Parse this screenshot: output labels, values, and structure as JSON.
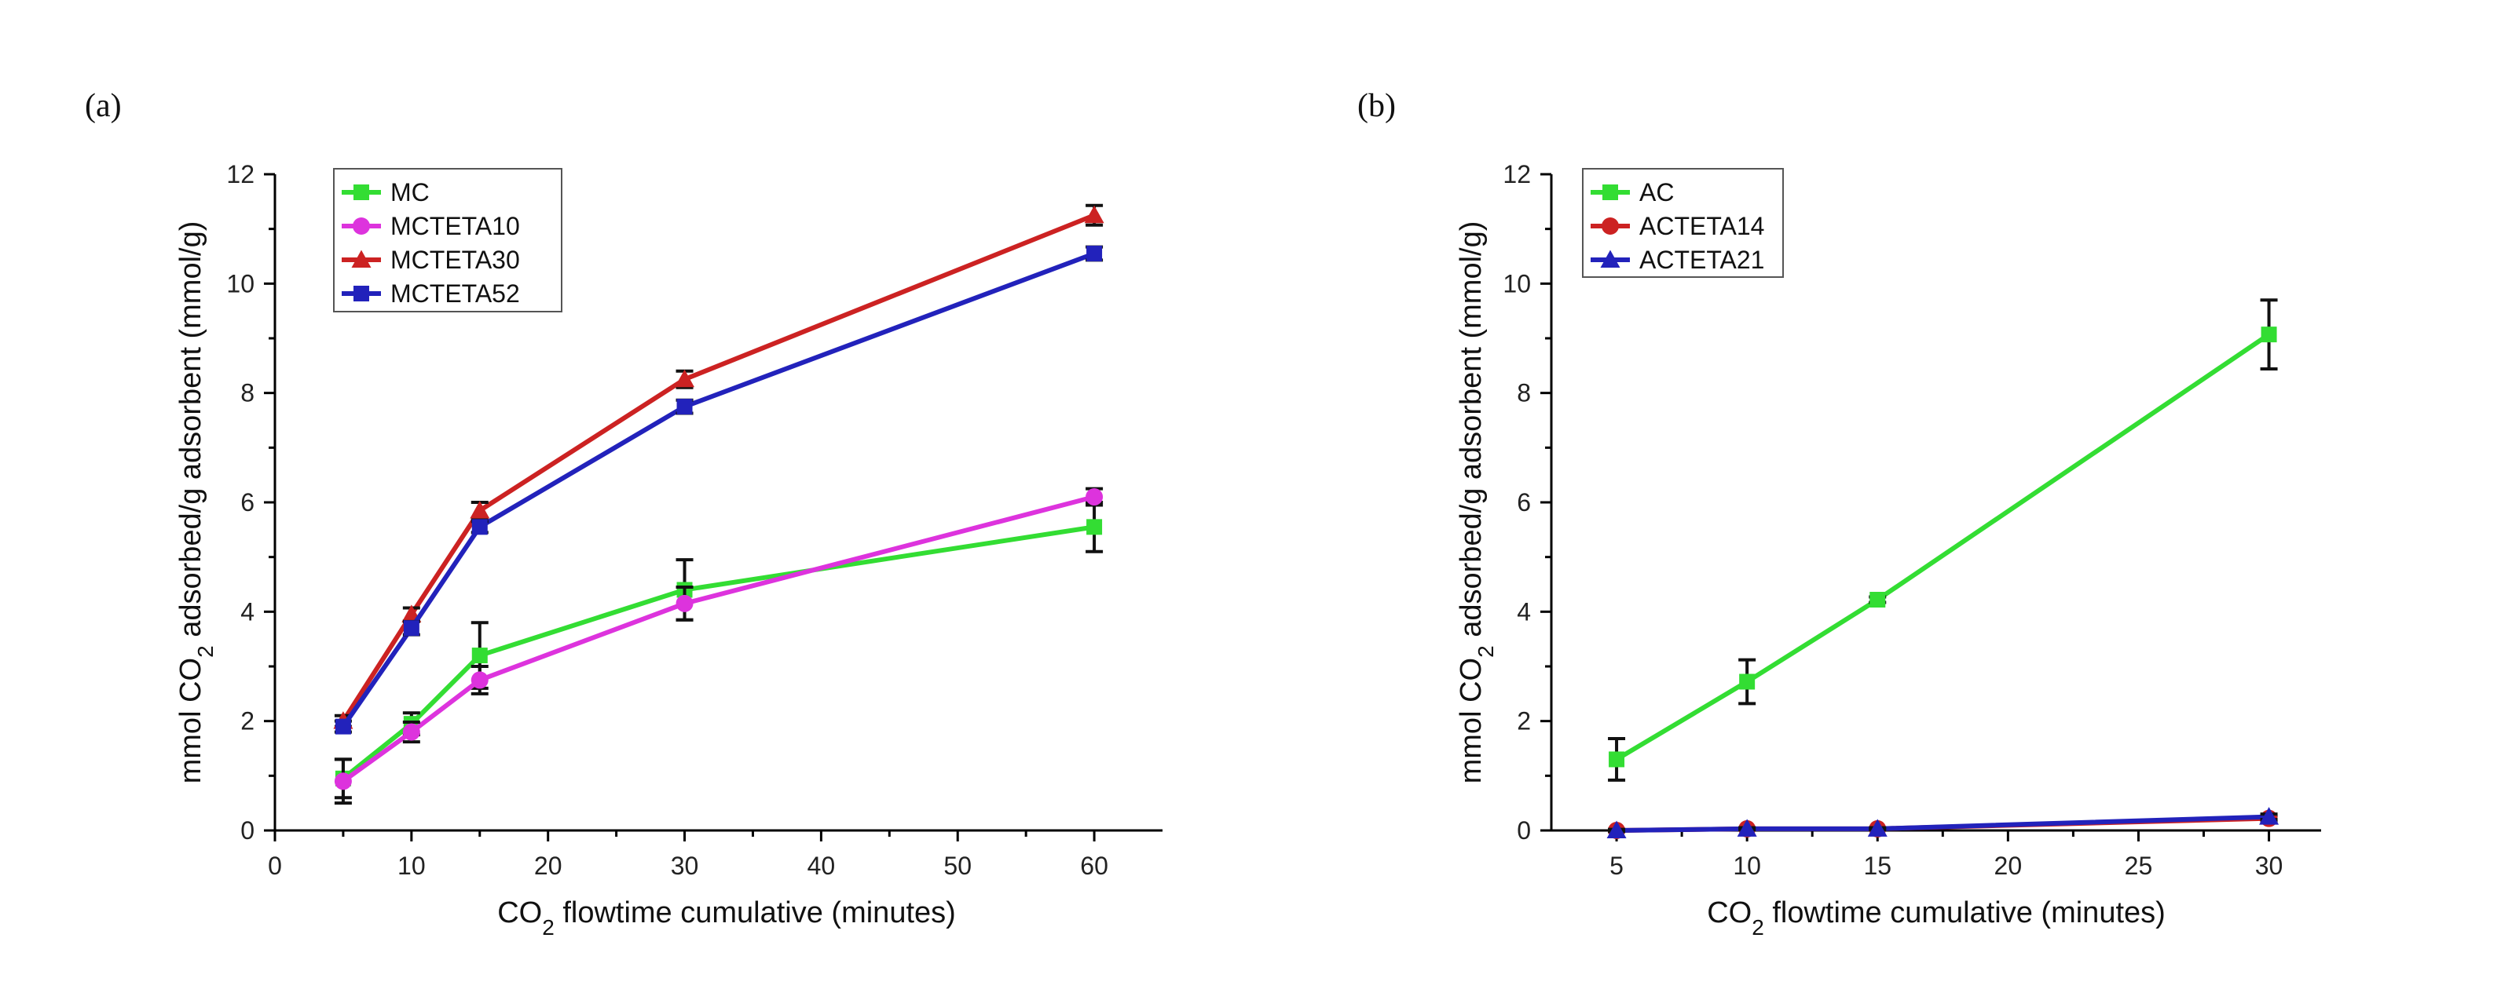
{
  "chart_data": [
    {
      "panel_label": "(a)",
      "type": "line",
      "xlabel": "CO2 flowtime cumulative (minutes)",
      "ylabel": "mmol CO2 adsorbed/g adsorbent (mmol/g)",
      "xlim": [
        0,
        65
      ],
      "ylim": [
        0,
        12
      ],
      "xticks": [
        0,
        10,
        20,
        30,
        40,
        50,
        60
      ],
      "yticks": [
        0,
        2,
        4,
        6,
        8,
        10,
        12
      ],
      "legend_position": "top-left",
      "grid": false,
      "x": [
        5,
        10,
        15,
        30,
        60
      ],
      "series": [
        {
          "name": "MC",
          "color": "#33dd33",
          "marker": "square",
          "values": [
            0.95,
            1.95,
            3.2,
            4.4,
            5.55
          ],
          "errors": [
            0.35,
            0.2,
            0.6,
            0.55,
            0.45
          ]
        },
        {
          "name": "MCTETA10",
          "color": "#dd33dd",
          "marker": "circle",
          "values": [
            0.9,
            1.8,
            2.75,
            4.15,
            6.1
          ],
          "errors": [
            0.4,
            0.18,
            0.25,
            0.3,
            0.15
          ]
        },
        {
          "name": "MCTETA30",
          "color": "#cc2222",
          "marker": "triangle",
          "values": [
            2.0,
            3.95,
            5.85,
            8.25,
            11.25
          ],
          "errors": [
            0.1,
            0.12,
            0.15,
            0.15,
            0.18
          ]
        },
        {
          "name": "MCTETA52",
          "color": "#2222bb",
          "marker": "square",
          "values": [
            1.9,
            3.7,
            5.55,
            7.75,
            10.55
          ],
          "errors": [
            0.1,
            0.12,
            0.1,
            0.12,
            0.12
          ]
        }
      ]
    },
    {
      "panel_label": "(b)",
      "type": "line",
      "xlabel": "CO2 flowtime cumulative (minutes)",
      "ylabel": "mmol CO2 adsorbed/g adsorbent (mmol/g)",
      "xlim": [
        2.5,
        32
      ],
      "ylim": [
        0,
        12
      ],
      "xticks": [
        5,
        10,
        15,
        20,
        25,
        30
      ],
      "yticks": [
        0,
        2,
        4,
        6,
        8,
        10,
        12
      ],
      "legend_position": "top-left",
      "grid": false,
      "x": [
        5,
        10,
        15,
        30
      ],
      "series": [
        {
          "name": "AC",
          "color": "#33dd33",
          "marker": "square",
          "values": [
            1.3,
            2.72,
            4.22,
            9.07
          ],
          "errors": [
            0.38,
            0.4,
            0.05,
            0.63
          ]
        },
        {
          "name": "ACTETA14",
          "color": "#cc2222",
          "marker": "circle",
          "values": [
            0.0,
            0.03,
            0.03,
            0.22
          ],
          "errors": [
            0.02,
            0.02,
            0.02,
            0.05
          ]
        },
        {
          "name": "ACTETA21",
          "color": "#2222bb",
          "marker": "triangle",
          "values": [
            0.0,
            0.03,
            0.03,
            0.25
          ],
          "errors": [
            0.02,
            0.02,
            0.02,
            0.05
          ]
        }
      ]
    }
  ]
}
